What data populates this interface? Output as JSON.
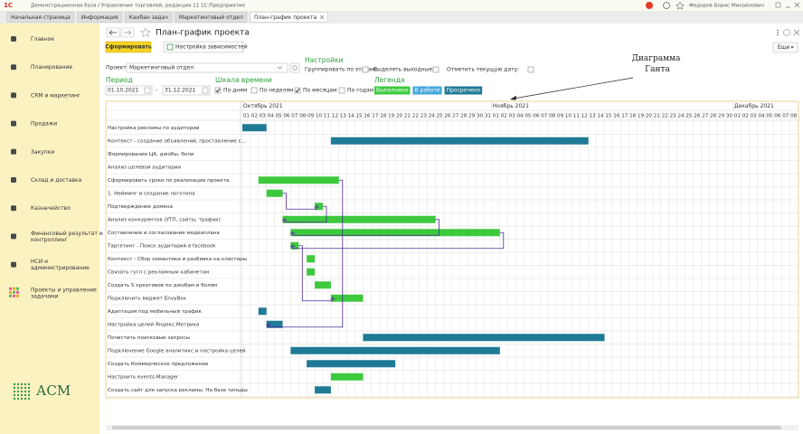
{
  "window": {
    "logo": "1С",
    "title": "Демонстрационная база / Управление торговлей, редакция 11 1С:Предприятие",
    "user": "Федоров Борис Михайлович"
  },
  "tabs": [
    "Начальная страница",
    "Информация",
    "Канбан задач",
    "Маркетинговый отдел",
    "План-график проекта"
  ],
  "sidebar": {
    "items": [
      "Главное",
      "Планирование",
      "CRM и маркетинг",
      "Продажи",
      "Закупки",
      "Склад и доставка",
      "Казначейство",
      "Финансовый результат и контроллинг",
      "НСИ и администрирование",
      "Проекты и управление задачами"
    ],
    "logo": "АСМ"
  },
  "form": {
    "title": "План-график проекта",
    "generate": "Сформировать",
    "dependencies": "Настройка зависимостей",
    "more": "Еще",
    "project_label": "Проект:",
    "project": "Маркетинговый отдел",
    "settings": {
      "heading": "Настройки",
      "options": [
        "Группировать по этапам:",
        "Выделять выходные:",
        "Отметить текущую дату:"
      ]
    },
    "period": {
      "heading": "Период",
      "from": "01.10.2021",
      "separator": "-",
      "to": "31.12.2021"
    },
    "scale": {
      "heading": "Шкала времени",
      "options": [
        {
          "label": "По дням",
          "checked": true
        },
        {
          "label": "По неделям",
          "checked": false
        },
        {
          "label": "По месяцам",
          "checked": true
        },
        {
          "label": "По годам",
          "checked": false
        }
      ]
    },
    "legend": {
      "heading": "Легенда",
      "items": [
        {
          "label": "Выполнено",
          "color": "#3dc93d"
        },
        {
          "label": "В работе",
          "color": "#45a7db"
        },
        {
          "label": "Просрочено",
          "color": "#1f7a96"
        }
      ]
    }
  },
  "annotation": "Диаграмма Ганта",
  "gantt": {
    "months": [
      {
        "label": "Октябрь 2021",
        "days": [
          "01",
          "02",
          "03",
          "04",
          "05",
          "06",
          "07",
          "08",
          "09",
          "10",
          "11",
          "12",
          "13",
          "14",
          "15",
          "16",
          "17",
          "18",
          "19",
          "20",
          "21",
          "22",
          "23",
          "24",
          "25",
          "26",
          "27",
          "28",
          "29",
          "30",
          "31"
        ]
      },
      {
        "label": "Ноябрь 2021",
        "days": [
          "01",
          "02",
          "03",
          "04",
          "05",
          "06",
          "07",
          "08",
          "09",
          "10",
          "11",
          "12",
          "13",
          "14",
          "15",
          "16",
          "17",
          "18",
          "19",
          "20",
          "21",
          "22",
          "23",
          "24",
          "25",
          "26",
          "27",
          "28",
          "29",
          "30"
        ]
      },
      {
        "label": "Декабрь 2021",
        "days": [
          "01",
          "02",
          "03",
          "04",
          "05",
          "06",
          "07",
          "08"
        ]
      }
    ],
    "tasks": [
      {
        "name": "Настройка рекламы по аудитории",
        "start": "2021-10-01",
        "end": "2021-10-03",
        "status": "Просрочено"
      },
      {
        "name": "Контекст - создание объявлений, проставление с...",
        "start": "2021-10-12",
        "end": "2021-11-12",
        "status": "Просрочено"
      },
      {
        "name": "Формирование ЦА, джобы, боли"
      },
      {
        "name": "Анализ целевой аудитории"
      },
      {
        "name": "Сформировать сроки по реализации проекта.",
        "start": "2021-10-03",
        "end": "2021-10-12",
        "status": "Выполнено"
      },
      {
        "name": "1. Нейминг и создание логотипа",
        "start": "2021-10-04",
        "end": "2021-10-05",
        "status": "Выполнено"
      },
      {
        "name": "Подтверждение домена",
        "start": "2021-10-10",
        "end": "2021-10-10",
        "status": "Выполнено"
      },
      {
        "name": "Анализ конкурентов (УТП, сайты, трафик)",
        "start": "2021-10-06",
        "end": "2021-10-24",
        "status": "Выполнено"
      },
      {
        "name": "Составление и согласование медиаплана",
        "start": "2021-10-07",
        "end": "2021-11-01",
        "status": "Выполнено"
      },
      {
        "name": "Таргетинг - Поиск аудиторий в facebook",
        "start": "2021-10-07",
        "end": "2021-10-07",
        "status": "Выполнено"
      },
      {
        "name": "Контекст - Сбор семантики и разбивка на кластеры",
        "start": "2021-10-09",
        "end": "2021-10-09",
        "status": "Выполнено"
      },
      {
        "name": "Связать гугл с рекламным кабинетом",
        "start": "2021-10-09",
        "end": "2021-10-09",
        "status": "Выполнено"
      },
      {
        "name": "Создать 5 креативов по джобам и болям",
        "start": "2021-10-10",
        "end": "2021-10-11",
        "status": "Выполнено"
      },
      {
        "name": "Подключить виджет EnvyBox",
        "start": "2021-10-12",
        "end": "2021-10-15",
        "status": "Выполнено"
      },
      {
        "name": "Адаптация под мобильный трафик",
        "start": "2021-10-03",
        "end": "2021-10-03",
        "status": "Просрочено"
      },
      {
        "name": "Настройка целей Яндекс.Метрика",
        "start": "2021-10-04",
        "end": "2021-10-05",
        "status": "Просрочено"
      },
      {
        "name": "Почистить поисковые запросы",
        "start": "2021-10-16",
        "end": "2021-11-14",
        "status": "Просрочено"
      },
      {
        "name": "Подключение Google аналитикс и настройка целей",
        "start": "2021-10-07",
        "end": "2021-11-01",
        "status": "Просрочено"
      },
      {
        "name": "Создать Коммерческое предложение",
        "start": "2021-10-09",
        "end": "2021-10-19",
        "status": "Просрочено"
      },
      {
        "name": "Настроить events-Manager",
        "start": "2021-10-12",
        "end": "2021-10-15",
        "status": "Выполнено"
      },
      {
        "name": "Создать сайт для запуска рекламы. На базе тильды",
        "start": "2021-10-10",
        "end": "2021-10-11",
        "status": "Просрочено"
      }
    ],
    "links": [
      [
        5,
        6
      ],
      [
        6,
        7
      ],
      [
        7,
        8
      ],
      [
        8,
        9
      ],
      [
        9,
        13
      ],
      [
        4,
        15
      ]
    ]
  }
}
